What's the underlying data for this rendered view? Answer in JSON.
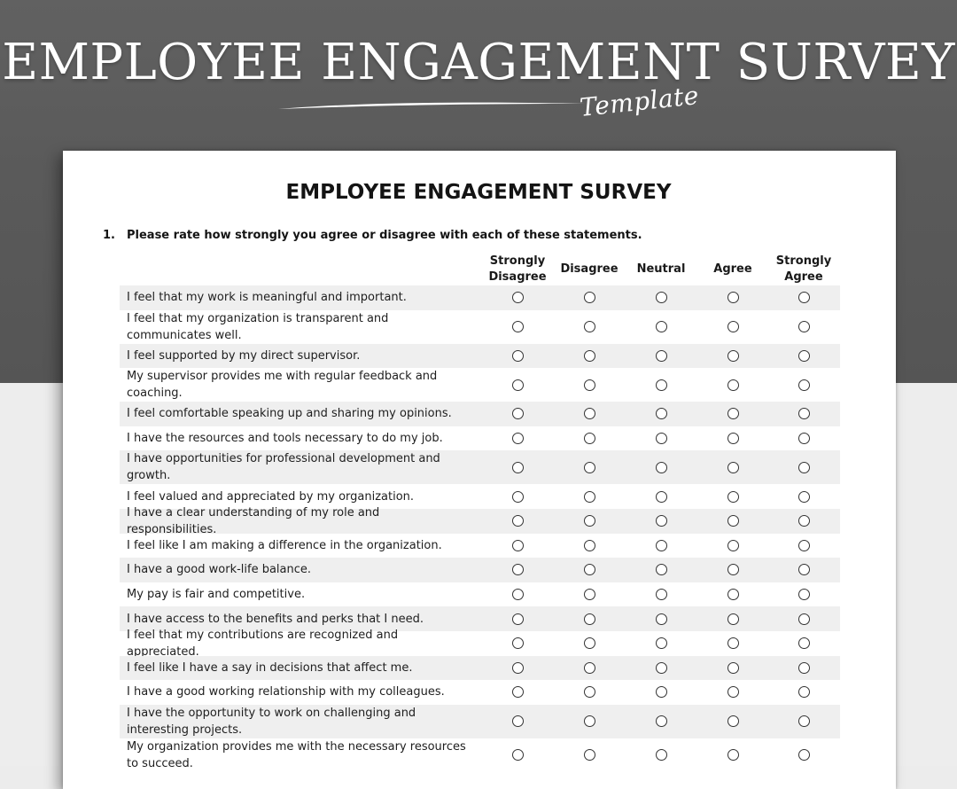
{
  "banner": {
    "title": "EMPLOYEE ENGAGEMENT SURVEY",
    "subtitle": "Template"
  },
  "document": {
    "title": "EMPLOYEE ENGAGEMENT SURVEY",
    "question_number": "1.",
    "question_text": "Please rate how strongly you agree or disagree with each of these statements.",
    "columns": [
      "Strongly Disagree",
      "Disagree",
      "Neutral",
      "Agree",
      "Strongly Agree"
    ],
    "statements": [
      "I feel that my work is meaningful and important.",
      "I feel that my organization is transparent and communicates well.",
      "I feel supported by my direct supervisor.",
      "My supervisor provides me with regular feedback and coaching.",
      "I feel comfortable speaking up and sharing my opinions.",
      "I have the resources and tools necessary to do my job.",
      "I have opportunities for professional development and growth.",
      "I feel valued and appreciated by my organization.",
      "I have a clear understanding of my role and responsibilities.",
      "I feel like I am making a difference in the organization.",
      "I have a good work-life balance.",
      "My pay is fair and competitive.",
      "I have access to the benefits and perks that I need.",
      "I feel that my contributions are recognized and appreciated.",
      "I feel like I have a say in decisions that affect me.",
      "I have a good working relationship with my colleagues.",
      "I have the opportunity to work on challenging and interesting projects.",
      "My organization provides me with the necessary resources to succeed."
    ]
  },
  "colors": {
    "banner_background": "#5a5a5a",
    "row_shading": "#efefef",
    "text": "#1e1e1e"
  }
}
